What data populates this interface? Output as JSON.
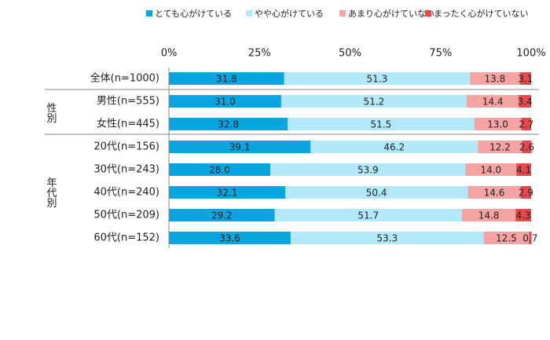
{
  "chart_data": {
    "type": "stacked-bar-horizontal",
    "categories": [
      "全体(n=1000)",
      "男性(n=555)",
      "女性(n=445)",
      "20代(n=156)",
      "30代(n=243)",
      "40代(n=240)",
      "50代(n=209)",
      "60代(n=152)"
    ],
    "groups": [
      "性別",
      "年代別"
    ],
    "xlim": [
      0,
      100
    ],
    "xticks": [
      {
        "value": 0,
        "label": "0%"
      },
      {
        "value": 25,
        "label": "25%"
      },
      {
        "value": 50,
        "label": "50%"
      },
      {
        "value": 75,
        "label": "75%"
      },
      {
        "value": 100,
        "label": "100%"
      }
    ],
    "series": [
      {
        "name": "とても心がけている",
        "color": "#0aa5e0",
        "values": [
          31.8,
          31.0,
          32.8,
          39.1,
          28.0,
          32.1,
          29.2,
          33.6
        ],
        "value_labels": [
          "31.8",
          "31.0",
          "32.8",
          "39.1",
          "28.0",
          "32.1",
          "29.2",
          "33.6"
        ]
      },
      {
        "name": "やや心がけている",
        "color": "#b3e7fa",
        "values": [
          51.3,
          51.2,
          51.5,
          46.2,
          53.9,
          50.4,
          51.7,
          53.3
        ],
        "value_labels": [
          "51.3",
          "51.2",
          "51.5",
          "46.2",
          "53.9",
          "50.4",
          "51.7",
          "53.3"
        ]
      },
      {
        "name": "あまり心がけていない",
        "color": "#f5a3a3",
        "values": [
          13.8,
          14.4,
          13.0,
          12.2,
          14.0,
          14.6,
          14.8,
          12.5
        ],
        "value_labels": [
          "13.8",
          "14.4",
          "13.0",
          "12.2",
          "14.0",
          "14.6",
          "14.8",
          "12.5"
        ]
      },
      {
        "name": "まったく心がけていない",
        "color": "#e8474b",
        "values": [
          3.1,
          3.4,
          2.7,
          2.6,
          4.1,
          2.9,
          4.3,
          0.7
        ],
        "value_labels": [
          "3.1",
          "3.4",
          "2.7",
          "2.6",
          "4.1",
          "2.9",
          "4.3",
          "0.7"
        ]
      }
    ]
  }
}
